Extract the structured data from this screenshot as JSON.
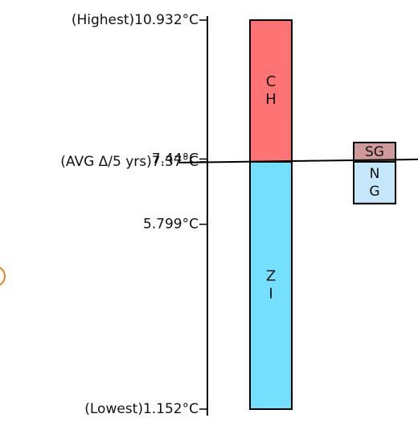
{
  "chart_data": {
    "type": "bar",
    "axis": {
      "min": 1.152,
      "max": 10.932,
      "ticks": [
        {
          "value": 10.932,
          "label": "(Highest)10.932°C"
        },
        {
          "value": 7.44,
          "label": "7.44°C"
        },
        {
          "value": 7.37,
          "label": "(AVG Δ/5 yrs)7.37°C"
        },
        {
          "value": 5.799,
          "label": "5.799°C"
        },
        {
          "value": 1.152,
          "label": "(Lowest)1.152°C"
        }
      ]
    },
    "reference_line": {
      "value": 7.37
    },
    "bars": [
      {
        "segments": [
          {
            "label": "C\nH",
            "from": 7.37,
            "to": 10.932,
            "color": "#fe7474"
          },
          {
            "label": "Z\nI",
            "from": 1.152,
            "to": 7.37,
            "color": "#74e0fd"
          }
        ]
      },
      {
        "segments": [
          {
            "label": "SG",
            "from": 7.37,
            "to": 7.855,
            "color": "#d19a9a"
          },
          {
            "label": "N\nG",
            "from": 6.32,
            "to": 7.37,
            "color": "#c5e6fb"
          }
        ]
      }
    ]
  }
}
